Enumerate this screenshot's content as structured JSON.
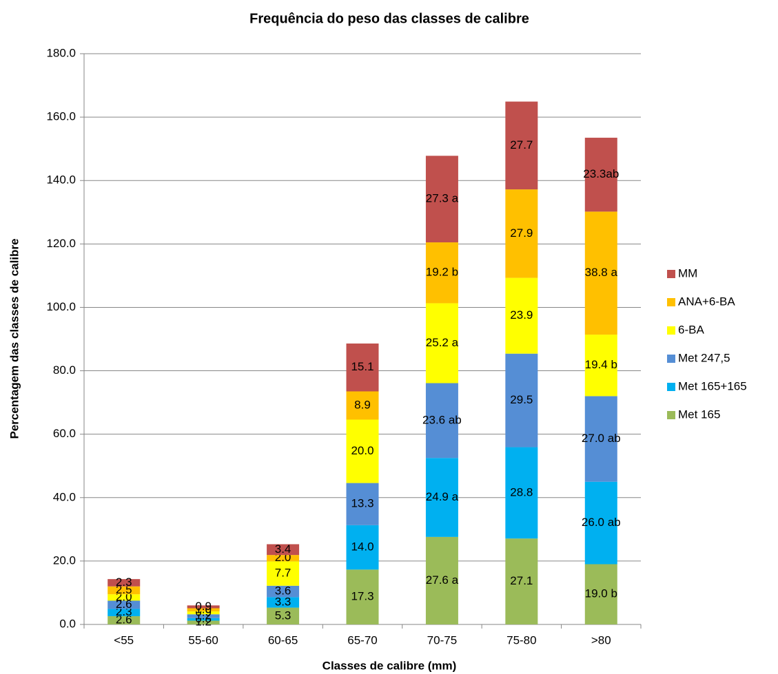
{
  "chart_data": {
    "type": "stacked_bar",
    "title": "Frequência do peso das classes de calibre",
    "x_label": "Classes de calibre (mm)",
    "y_label": "Percentagem das classes de calibre",
    "categories": [
      "<55",
      "55-60",
      "60-65",
      "65-70",
      "70-75",
      "75-80",
      ">80"
    ],
    "series": [
      {
        "name": "Met 165",
        "color": "#9bbb59",
        "values": [
          2.6,
          1.2,
          5.3,
          17.3,
          27.6,
          27.1,
          19.0
        ],
        "value_labels": [
          "2.6",
          "1.2",
          "5.3",
          "17.3",
          "27.6 a",
          "27.1",
          "19.0 b"
        ]
      },
      {
        "name": "Met 165+165",
        "color": "#00b0f0",
        "values": [
          2.3,
          0.8,
          3.3,
          14.0,
          24.9,
          28.8,
          26.0
        ],
        "value_labels": [
          "2.3",
          "0.8",
          "3.3",
          "14.0",
          "24.9 a",
          "28.8",
          "26.0 ab"
        ]
      },
      {
        "name": "Met 247,5",
        "color": "#558ed5",
        "values": [
          2.6,
          1.2,
          3.6,
          13.3,
          23.6,
          29.5,
          27.0
        ],
        "value_labels": [
          "2.6",
          "1.2",
          "3.6",
          "13.3",
          "23.6 ab",
          "29.5",
          "27.0 ab"
        ]
      },
      {
        "name": "6-BA",
        "color": "#ffff00",
        "values": [
          2.0,
          0.9,
          7.7,
          20.0,
          25.2,
          23.9,
          19.4
        ],
        "value_labels": [
          "2.0",
          "0.9",
          "7.7",
          "20.0",
          "25.2 a",
          "23.9",
          "19.4 b"
        ]
      },
      {
        "name": "ANA+6-BA",
        "color": "#ffc000",
        "values": [
          2.5,
          1.0,
          2.0,
          8.9,
          19.2,
          27.9,
          38.8
        ],
        "value_labels": [
          "2.5",
          "1.0",
          "2.0",
          "8.9",
          "19.2 b",
          "27.9",
          "38.8 a"
        ]
      },
      {
        "name": "MM",
        "color": "#c0504d",
        "values": [
          2.3,
          0.9,
          3.4,
          15.1,
          27.3,
          27.7,
          23.3
        ],
        "value_labels": [
          "2.3",
          "0.9",
          "3.4",
          "15.1",
          "27.3 a",
          "27.7",
          "23.3ab"
        ]
      }
    ],
    "ylim": [
      0,
      180
    ],
    "yticks": [
      {
        "value": 0,
        "label": "0.0"
      },
      {
        "value": 20,
        "label": "20.0"
      },
      {
        "value": 40,
        "label": "40.0"
      },
      {
        "value": 60,
        "label": "60.0"
      },
      {
        "value": 80,
        "label": "80.0"
      },
      {
        "value": 100,
        "label": "100.0"
      },
      {
        "value": 120,
        "label": "120.0"
      },
      {
        "value": 140,
        "label": "140.0"
      },
      {
        "value": 160,
        "label": "160.0"
      },
      {
        "value": 180,
        "label": "180.0"
      }
    ],
    "grid": true,
    "legend": "right"
  }
}
